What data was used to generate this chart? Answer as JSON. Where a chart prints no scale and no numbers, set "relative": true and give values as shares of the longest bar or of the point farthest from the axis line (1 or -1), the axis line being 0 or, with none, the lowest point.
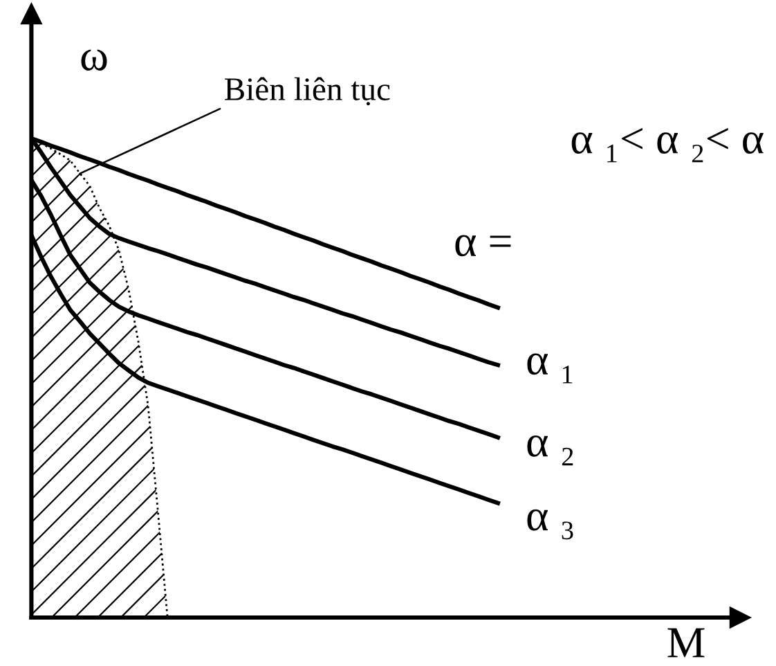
{
  "chart_data": {
    "type": "line",
    "xlabel": "M",
    "ylabel": "ω",
    "relative": true,
    "line_style": "solid",
    "categories": [
      null,
      null,
      null,
      null,
      null,
      null,
      null,
      null,
      null,
      null,
      null,
      null,
      null,
      null,
      null,
      null,
      null,
      null,
      null,
      null,
      null,
      null,
      null,
      null,
      null,
      null,
      null,
      null,
      null,
      null,
      null,
      null,
      null,
      null,
      null,
      null,
      null,
      null,
      null,
      null,
      null,
      null,
      null,
      null,
      null,
      null,
      null,
      null,
      null
    ],
    "series": [
      {
        "name": "α =",
        "color": "#000000",
        "values": [
          1.0,
          0.993,
          0.985,
          0.978,
          0.971,
          0.963,
          0.956,
          0.949,
          0.941,
          0.934,
          0.926,
          0.919,
          0.912,
          0.904,
          0.897,
          0.89,
          0.882,
          0.875,
          0.868,
          0.86,
          0.853,
          0.846,
          0.838,
          0.831,
          0.824,
          0.816,
          0.809,
          0.801,
          0.794,
          0.787,
          0.779,
          0.772,
          0.765,
          0.757,
          0.75,
          0.743,
          0.735,
          0.728,
          0.721,
          0.713,
          0.706,
          0.699,
          0.691,
          0.684,
          0.676,
          0.669,
          0.662,
          0.654,
          0.647
        ]
      },
      {
        "name": "α ₁",
        "color": "#000000",
        "values": [
          1.0,
          0.971,
          0.94,
          0.911,
          0.882,
          0.858,
          0.834,
          0.816,
          0.801,
          0.792,
          0.785,
          0.778,
          0.771,
          0.765,
          0.758,
          0.751,
          0.744,
          0.737,
          0.731,
          0.724,
          0.717,
          0.71,
          0.703,
          0.697,
          0.69,
          0.683,
          0.676,
          0.669,
          0.663,
          0.656,
          0.649,
          0.642,
          0.635,
          0.629,
          0.622,
          0.615,
          0.608,
          0.601,
          0.595,
          0.588,
          0.581,
          0.574,
          0.567,
          0.561,
          0.554,
          0.547,
          0.54,
          0.533,
          0.527
        ]
      },
      {
        "name": "α ₂",
        "color": "#000000",
        "values": [
          0.913,
          0.88,
          0.841,
          0.798,
          0.757,
          0.728,
          0.699,
          0.68,
          0.663,
          0.649,
          0.639,
          0.631,
          0.624,
          0.617,
          0.61,
          0.603,
          0.596,
          0.59,
          0.583,
          0.576,
          0.569,
          0.562,
          0.555,
          0.548,
          0.541,
          0.534,
          0.527,
          0.521,
          0.514,
          0.507,
          0.5,
          0.493,
          0.486,
          0.479,
          0.472,
          0.466,
          0.459,
          0.452,
          0.445,
          0.438,
          0.431,
          0.424,
          0.417,
          0.41,
          0.404,
          0.397,
          0.39,
          0.383,
          0.376
        ]
      },
      {
        "name": "α ₃",
        "color": "#000000",
        "values": [
          0.798,
          0.753,
          0.712,
          0.676,
          0.642,
          0.618,
          0.593,
          0.572,
          0.551,
          0.531,
          0.516,
          0.501,
          0.49,
          0.483,
          0.476,
          0.469,
          0.462,
          0.455,
          0.448,
          0.441,
          0.434,
          0.427,
          0.42,
          0.413,
          0.406,
          0.399,
          0.392,
          0.385,
          0.378,
          0.371,
          0.364,
          0.357,
          0.351,
          0.344,
          0.337,
          0.33,
          0.323,
          0.316,
          0.309,
          0.302,
          0.295,
          0.288,
          0.281,
          0.274,
          0.267,
          0.26,
          0.253,
          0.246,
          0.239
        ]
      },
      {
        "name": "Biên liên tục",
        "type": "area",
        "line_style": "dotted",
        "color": "#000000",
        "values": [
          1.0,
          0.99,
          0.979,
          0.967,
          0.954,
          0.927,
          0.901,
          0.855,
          0.818,
          0.767,
          0.685,
          0.576,
          0.443,
          0.225,
          0,
          null,
          null,
          null,
          null,
          null,
          null,
          null,
          null,
          null,
          null,
          null,
          null,
          null,
          null,
          null,
          null,
          null,
          null,
          null,
          null,
          null,
          null,
          null,
          null,
          null,
          null,
          null,
          null,
          null,
          null,
          null,
          null,
          null,
          null
        ]
      }
    ],
    "annotations": [
      "α ₁< α ₂< α"
    ]
  }
}
